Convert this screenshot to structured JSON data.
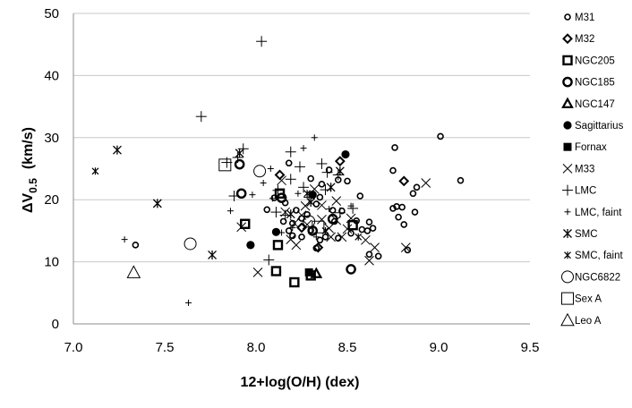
{
  "chart_data": {
    "type": "scatter",
    "xlabel": "12+log(O/H)   (dex)",
    "ylabel_main": "ΔV",
    "ylabel_sub": "0.5",
    "ylabel_unit": "(km/s)",
    "xlim": [
      7.0,
      9.5
    ],
    "ylim": [
      0,
      50
    ],
    "xticks": [
      "7.0",
      "7.5",
      "8.0",
      "8.5",
      "9.0",
      "9.5"
    ],
    "yticks": [
      "0",
      "10",
      "20",
      "30",
      "40",
      "50"
    ],
    "grid": "horizontal",
    "legend_position": "right",
    "series": [
      {
        "name": "M31",
        "marker": "circle-small-open",
        "points": [
          [
            7.34,
            12.7
          ],
          [
            8.76,
            28.4
          ],
          [
            9.01,
            30.2
          ],
          [
            9.12,
            23.1
          ],
          [
            8.88,
            22.0
          ],
          [
            8.86,
            21.0
          ],
          [
            8.8,
            18.8
          ],
          [
            8.75,
            18.6
          ],
          [
            8.77,
            18.9
          ],
          [
            8.78,
            17.2
          ],
          [
            8.81,
            16.0
          ],
          [
            8.87,
            18.0
          ],
          [
            8.83,
            11.9
          ],
          [
            8.75,
            24.7
          ],
          [
            8.57,
            20.6
          ],
          [
            8.55,
            16.6
          ],
          [
            8.62,
            16.4
          ],
          [
            8.58,
            15.2
          ],
          [
            8.61,
            15.0
          ],
          [
            8.64,
            15.4
          ],
          [
            8.62,
            11.2
          ],
          [
            8.67,
            10.9
          ],
          [
            8.5,
            23.0
          ],
          [
            8.45,
            23.2
          ],
          [
            8.4,
            24.8
          ],
          [
            8.36,
            22.5
          ],
          [
            8.3,
            23.4
          ],
          [
            8.47,
            18.2
          ],
          [
            8.42,
            18.3
          ],
          [
            8.35,
            20.4
          ],
          [
            8.33,
            19.3
          ],
          [
            8.28,
            17.6
          ],
          [
            8.25,
            17.0
          ],
          [
            8.22,
            18.3
          ],
          [
            8.2,
            16.2
          ],
          [
            8.18,
            15.0
          ],
          [
            8.25,
            14.0
          ],
          [
            8.3,
            15.1
          ],
          [
            8.35,
            13.5
          ],
          [
            8.38,
            14.0
          ],
          [
            8.45,
            13.8
          ],
          [
            8.52,
            14.6
          ],
          [
            8.18,
            25.9
          ],
          [
            8.1,
            20.3
          ],
          [
            8.16,
            19.5
          ],
          [
            8.06,
            18.4
          ],
          [
            8.15,
            16.5
          ],
          [
            8.2,
            14.2
          ],
          [
            8.33,
            12.2
          ],
          [
            8.43,
            16.5
          ]
        ]
      },
      {
        "name": "M32",
        "marker": "diamond-open",
        "points": [
          [
            8.46,
            26.2
          ],
          [
            8.81,
            23.0
          ],
          [
            8.13,
            24.0
          ],
          [
            8.34,
            12.3
          ],
          [
            8.25,
            15.5
          ]
        ]
      },
      {
        "name": "NGC205",
        "marker": "square-open",
        "points": [
          [
            8.13,
            21.0
          ],
          [
            7.94,
            16.1
          ],
          [
            8.12,
            12.7
          ],
          [
            8.11,
            8.5
          ],
          [
            8.21,
            6.7
          ],
          [
            8.3,
            7.8
          ],
          [
            8.53,
            15.9
          ]
        ]
      },
      {
        "name": "NGC185",
        "marker": "circle-open",
        "points": [
          [
            7.92,
            21.0
          ],
          [
            7.91,
            25.7
          ],
          [
            8.14,
            20.3
          ],
          [
            8.31,
            15.0
          ],
          [
            8.42,
            16.9
          ],
          [
            8.52,
            8.8
          ]
        ]
      },
      {
        "name": "NGC147",
        "marker": "triangle-open",
        "points": [
          [
            8.33,
            8.1
          ]
        ]
      },
      {
        "name": "Sagittarius",
        "marker": "circle-filled",
        "points": [
          [
            8.49,
            27.3
          ],
          [
            8.31,
            20.8
          ],
          [
            7.97,
            12.7
          ],
          [
            8.11,
            14.8
          ]
        ]
      },
      {
        "name": "Fornax",
        "marker": "square-filled",
        "points": [
          [
            8.29,
            8.3
          ]
        ]
      },
      {
        "name": "M33",
        "marker": "x",
        "points": [
          [
            8.93,
            22.7
          ],
          [
            8.82,
            12.3
          ],
          [
            8.62,
            10.2
          ],
          [
            8.65,
            12.3
          ],
          [
            8.47,
            14.0
          ],
          [
            8.4,
            15.4
          ],
          [
            8.44,
            19.8
          ],
          [
            8.36,
            19.1
          ],
          [
            8.32,
            21.7
          ],
          [
            8.27,
            19.0
          ],
          [
            8.25,
            17.5
          ],
          [
            8.21,
            16.2
          ],
          [
            8.22,
            12.7
          ],
          [
            8.19,
            13.6
          ],
          [
            8.16,
            18.0
          ],
          [
            8.14,
            23.1
          ],
          [
            8.36,
            16.8
          ],
          [
            8.41,
            14.0
          ],
          [
            8.44,
            16.7
          ],
          [
            8.5,
            15.3
          ],
          [
            8.52,
            17.0
          ],
          [
            8.6,
            13.5
          ],
          [
            8.01,
            8.3
          ],
          [
            7.92,
            15.6
          ],
          [
            8.28,
            16.0
          ]
        ]
      },
      {
        "name": "LMC",
        "marker": "plus",
        "points": [
          [
            8.03,
            45.5
          ],
          [
            7.7,
            33.4
          ],
          [
            7.84,
            26.0
          ],
          [
            7.88,
            20.6
          ],
          [
            7.9,
            26.8
          ],
          [
            7.93,
            28.2
          ],
          [
            8.19,
            27.7
          ],
          [
            8.24,
            25.3
          ],
          [
            8.36,
            25.8
          ],
          [
            8.39,
            24.4
          ],
          [
            8.45,
            24.0
          ],
          [
            8.12,
            21.5
          ],
          [
            8.16,
            17.5
          ],
          [
            8.07,
            10.3
          ],
          [
            8.26,
            22.0
          ],
          [
            8.29,
            20.4
          ],
          [
            8.38,
            21.6
          ],
          [
            8.46,
            17.9
          ],
          [
            8.53,
            18.6
          ],
          [
            8.11,
            18.0
          ],
          [
            8.19,
            23.3
          ]
        ]
      },
      {
        "name": "LMC, faint",
        "marker": "plus-small",
        "points": [
          [
            7.63,
            3.4
          ],
          [
            7.28,
            13.6
          ],
          [
            7.86,
            18.2
          ],
          [
            7.98,
            20.8
          ],
          [
            8.04,
            22.7
          ],
          [
            8.32,
            30.0
          ],
          [
            8.26,
            28.3
          ],
          [
            8.08,
            25.0
          ],
          [
            8.2,
            15.5
          ],
          [
            8.14,
            14.7
          ],
          [
            8.33,
            14.0
          ],
          [
            8.09,
            20.2
          ],
          [
            8.23,
            21.0
          ],
          [
            8.4,
            18.5
          ],
          [
            8.52,
            19.0
          ]
        ]
      },
      {
        "name": "SMC",
        "marker": "asterisk",
        "points": [
          [
            7.24,
            28.0
          ],
          [
            7.46,
            19.4
          ],
          [
            7.76,
            11.1
          ],
          [
            7.91,
            27.5
          ],
          [
            8.41,
            22.0
          ],
          [
            8.46,
            24.6
          ],
          [
            8.3,
            19.6
          ],
          [
            8.19,
            17.7
          ]
        ]
      },
      {
        "name": "SMC, faint",
        "marker": "asterisk-small",
        "points": [
          [
            7.12,
            24.6
          ],
          [
            8.28,
            21.0
          ],
          [
            8.38,
            15.0
          ],
          [
            8.56,
            14.0
          ]
        ]
      },
      {
        "name": "NGC6822",
        "marker": "circle-large-open",
        "points": [
          [
            7.64,
            12.9
          ],
          [
            8.02,
            24.6
          ],
          [
            8.29,
            16.5
          ]
        ]
      },
      {
        "name": "Sex A",
        "marker": "square-large-open",
        "points": [
          [
            7.83,
            25.6
          ],
          [
            8.34,
            15.6
          ]
        ]
      },
      {
        "name": "Leo A",
        "marker": "triangle-large-open",
        "points": [
          [
            7.33,
            8.3
          ]
        ]
      }
    ]
  }
}
